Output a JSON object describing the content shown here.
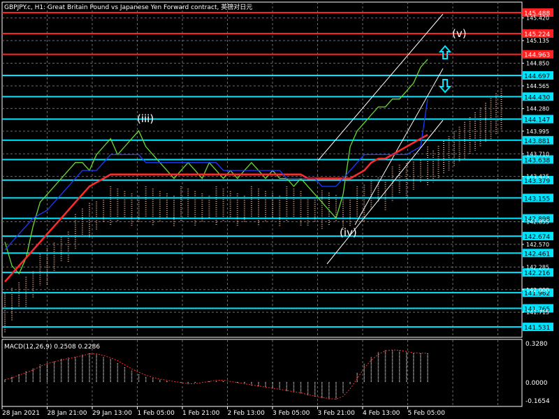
{
  "header": {
    "title": "GBPJPY.c, H1:  Great Britain Pound vs Japanese Yen Forward contract, 英镑对日元"
  },
  "wave_labels": [
    "(iii)",
    "(iv)",
    "(v)"
  ],
  "macd": {
    "label": "MACD(12,26,9) 0.2508 0.2286",
    "axis_ticks": [
      "0.3280",
      "0.0000",
      "-0.1654"
    ]
  },
  "x_axis": {
    "labels": [
      "28 Jan 2021",
      "28 Jan 21:00",
      "29 Jan 13:00",
      "1 Feb 05:00",
      "1 Feb 21:00",
      "2 Feb 13:00",
      "3 Feb 05:00",
      "3 Feb 21:00",
      "4 Feb 13:00",
      "5 Feb 05:00"
    ]
  },
  "chart_data": {
    "type": "line",
    "symbol": "GBPJPY.c",
    "timeframe": "H1",
    "price_axis": {
      "range": [
        141.4,
        145.62
      ],
      "ticks": [
        "145.420",
        "145.135",
        "144.850",
        "144.565",
        "144.280",
        "143.995",
        "143.710",
        "143.425",
        "142.855",
        "142.570",
        "142.285",
        "142.000",
        "141.715"
      ]
    },
    "levels": [
      {
        "price": 145.488,
        "label": "145.488",
        "color": "#ff2020",
        "kind": "resistance"
      },
      {
        "price": 145.224,
        "label": "145.224",
        "color": "#ff2020",
        "kind": "resistance"
      },
      {
        "price": 144.963,
        "label": "144.963",
        "color": "#ff2020",
        "kind": "resistance"
      },
      {
        "price": 144.697,
        "label": "144.697",
        "color": "#00e5ff",
        "kind": "support"
      },
      {
        "price": 144.43,
        "label": "144.430",
        "color": "#00e5ff",
        "kind": "support"
      },
      {
        "price": 144.147,
        "label": "144.147",
        "color": "#00e5ff",
        "kind": "support"
      },
      {
        "price": 143.881,
        "label": "143.881",
        "color": "#00e5ff",
        "kind": "support"
      },
      {
        "price": 143.638,
        "label": "143.638",
        "color": "#00e5ff",
        "kind": "support"
      },
      {
        "price": 143.379,
        "label": "143.379",
        "color": "#00e5ff",
        "kind": "support"
      },
      {
        "price": 143.155,
        "label": "143.155",
        "color": "#00e5ff",
        "kind": "support"
      },
      {
        "price": 142.898,
        "label": "142.898",
        "color": "#00e5ff",
        "kind": "support"
      },
      {
        "price": 142.674,
        "label": "142.674",
        "color": "#00e5ff",
        "kind": "support"
      },
      {
        "price": 142.461,
        "label": "142.461",
        "color": "#00e5ff",
        "kind": "support"
      },
      {
        "price": 142.216,
        "label": "142.216",
        "color": "#00e5ff",
        "kind": "support"
      },
      {
        "price": 141.962,
        "label": "141.962",
        "color": "#00e5ff",
        "kind": "support"
      },
      {
        "price": 141.765,
        "label": "141.765",
        "color": "#00e5ff",
        "kind": "support"
      },
      {
        "price": 141.531,
        "label": "141.531",
        "color": "#00e5ff",
        "kind": "support"
      }
    ],
    "series": [
      {
        "color": "#66dd33",
        "values": [
          142.6,
          142.3,
          142.2,
          142.4,
          142.8,
          143.1,
          143.2,
          143.3,
          143.4,
          143.5,
          143.6,
          143.6,
          143.5,
          143.7,
          143.8,
          143.9,
          143.7,
          143.8,
          143.9,
          144.0,
          143.8,
          143.7,
          143.6,
          143.5,
          143.4,
          143.5,
          143.6,
          143.5,
          143.4,
          143.6,
          143.5,
          143.4,
          143.5,
          143.4,
          143.5,
          143.6,
          143.5,
          143.4,
          143.5,
          143.4,
          143.4,
          143.3,
          143.4,
          143.3,
          143.2,
          143.1,
          143.0,
          142.9,
          143.2,
          143.8,
          144.0,
          144.1,
          144.2,
          144.3,
          144.3,
          144.4,
          144.4,
          144.5,
          144.6,
          144.8,
          144.9
        ]
      },
      {
        "color": "#ff2b2b",
        "values": [
          142.1,
          142.2,
          142.3,
          142.4,
          142.5,
          142.6,
          142.7,
          142.8,
          142.9,
          143.0,
          143.1,
          143.2,
          143.3,
          143.35,
          143.4,
          143.45,
          143.45,
          143.45,
          143.45,
          143.45,
          143.45,
          143.45,
          143.45,
          143.45,
          143.45,
          143.45,
          143.45,
          143.45,
          143.45,
          143.45,
          143.45,
          143.45,
          143.45,
          143.45,
          143.45,
          143.45,
          143.45,
          143.45,
          143.45,
          143.45,
          143.45,
          143.45,
          143.45,
          143.4,
          143.4,
          143.4,
          143.4,
          143.4,
          143.4,
          143.4,
          143.45,
          143.5,
          143.6,
          143.65,
          143.65,
          143.7,
          143.75,
          143.8,
          143.85,
          143.9,
          143.95
        ]
      },
      {
        "color": "#1a3cff",
        "values": [
          142.5,
          142.6,
          142.7,
          142.8,
          142.9,
          142.95,
          143.0,
          143.1,
          143.2,
          143.3,
          143.4,
          143.5,
          143.5,
          143.5,
          143.6,
          143.7,
          143.7,
          143.7,
          143.7,
          143.7,
          143.6,
          143.6,
          143.6,
          143.6,
          143.6,
          143.6,
          143.6,
          143.6,
          143.6,
          143.6,
          143.6,
          143.5,
          143.5,
          143.5,
          143.5,
          143.5,
          143.5,
          143.5,
          143.5,
          143.5,
          143.4,
          143.4,
          143.4,
          143.4,
          143.4,
          143.3,
          143.3,
          143.3,
          143.4,
          143.5,
          143.6,
          143.7,
          143.7,
          143.7,
          143.7,
          143.7,
          143.7,
          143.7,
          143.75,
          143.8,
          144.4
        ]
      }
    ],
    "macd_histogram": [
      0.02,
      0.05,
      0.07,
      0.09,
      0.12,
      0.15,
      0.17,
      0.18,
      0.2,
      0.21,
      0.22,
      0.24,
      0.25,
      0.24,
      0.22,
      0.2,
      0.17,
      0.13,
      0.1,
      0.07,
      0.05,
      0.03,
      0.02,
      0.01,
      0.0,
      -0.01,
      -0.02,
      -0.01,
      0.0,
      0.01,
      0.02,
      0.01,
      0.0,
      -0.01,
      -0.02,
      -0.03,
      -0.04,
      -0.05,
      -0.06,
      -0.07,
      -0.08,
      -0.09,
      -0.1,
      -0.12,
      -0.13,
      -0.14,
      -0.15,
      -0.15,
      -0.1,
      -0.02,
      0.08,
      0.16,
      0.22,
      0.26,
      0.28,
      0.28,
      0.27,
      0.26,
      0.25,
      0.25,
      0.25
    ]
  }
}
